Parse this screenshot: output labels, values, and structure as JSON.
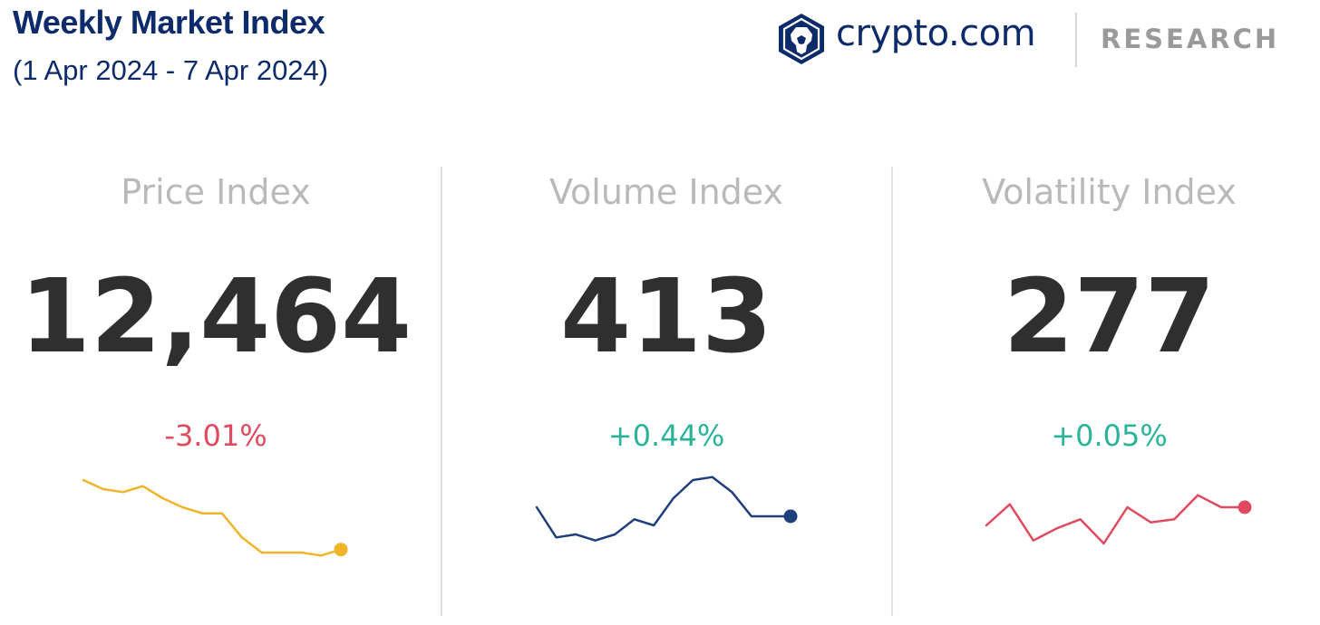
{
  "header": {
    "title": "Weekly Market Index",
    "subtitle": "(1 Apr 2024 - 7 Apr 2024)"
  },
  "brand": {
    "name": "crypto.com",
    "section": "RESEARCH",
    "icon": "crypto-com-lion-icon",
    "color": "#0d2a6b"
  },
  "colors": {
    "positive": "#2bb39a",
    "negative": "#e04a5f"
  },
  "chart_data": [
    {
      "type": "line",
      "label": "Price Index",
      "value": "12,464",
      "change": "-3.01%",
      "trend": "negative",
      "color": "#f0b429",
      "y": [
        0.57,
        0.54,
        0.53,
        0.55,
        0.51,
        0.48,
        0.46,
        0.46,
        0.38,
        0.33,
        0.33,
        0.33,
        0.32,
        0.34
      ]
    },
    {
      "type": "line",
      "label": "Volume Index",
      "value": "413",
      "change": "+0.44%",
      "trend": "positive",
      "color": "#1e3f7a",
      "y": [
        0.48,
        0.38,
        0.39,
        0.37,
        0.39,
        0.44,
        0.42,
        0.51,
        0.57,
        0.58,
        0.53,
        0.45,
        0.45,
        0.45
      ]
    },
    {
      "type": "line",
      "label": "Volatility Index",
      "value": "277",
      "change": "+0.05%",
      "trend": "positive",
      "color": "#e04a5f",
      "y": [
        0.42,
        0.49,
        0.37,
        0.41,
        0.44,
        0.36,
        0.48,
        0.43,
        0.44,
        0.52,
        0.48,
        0.48
      ]
    }
  ]
}
